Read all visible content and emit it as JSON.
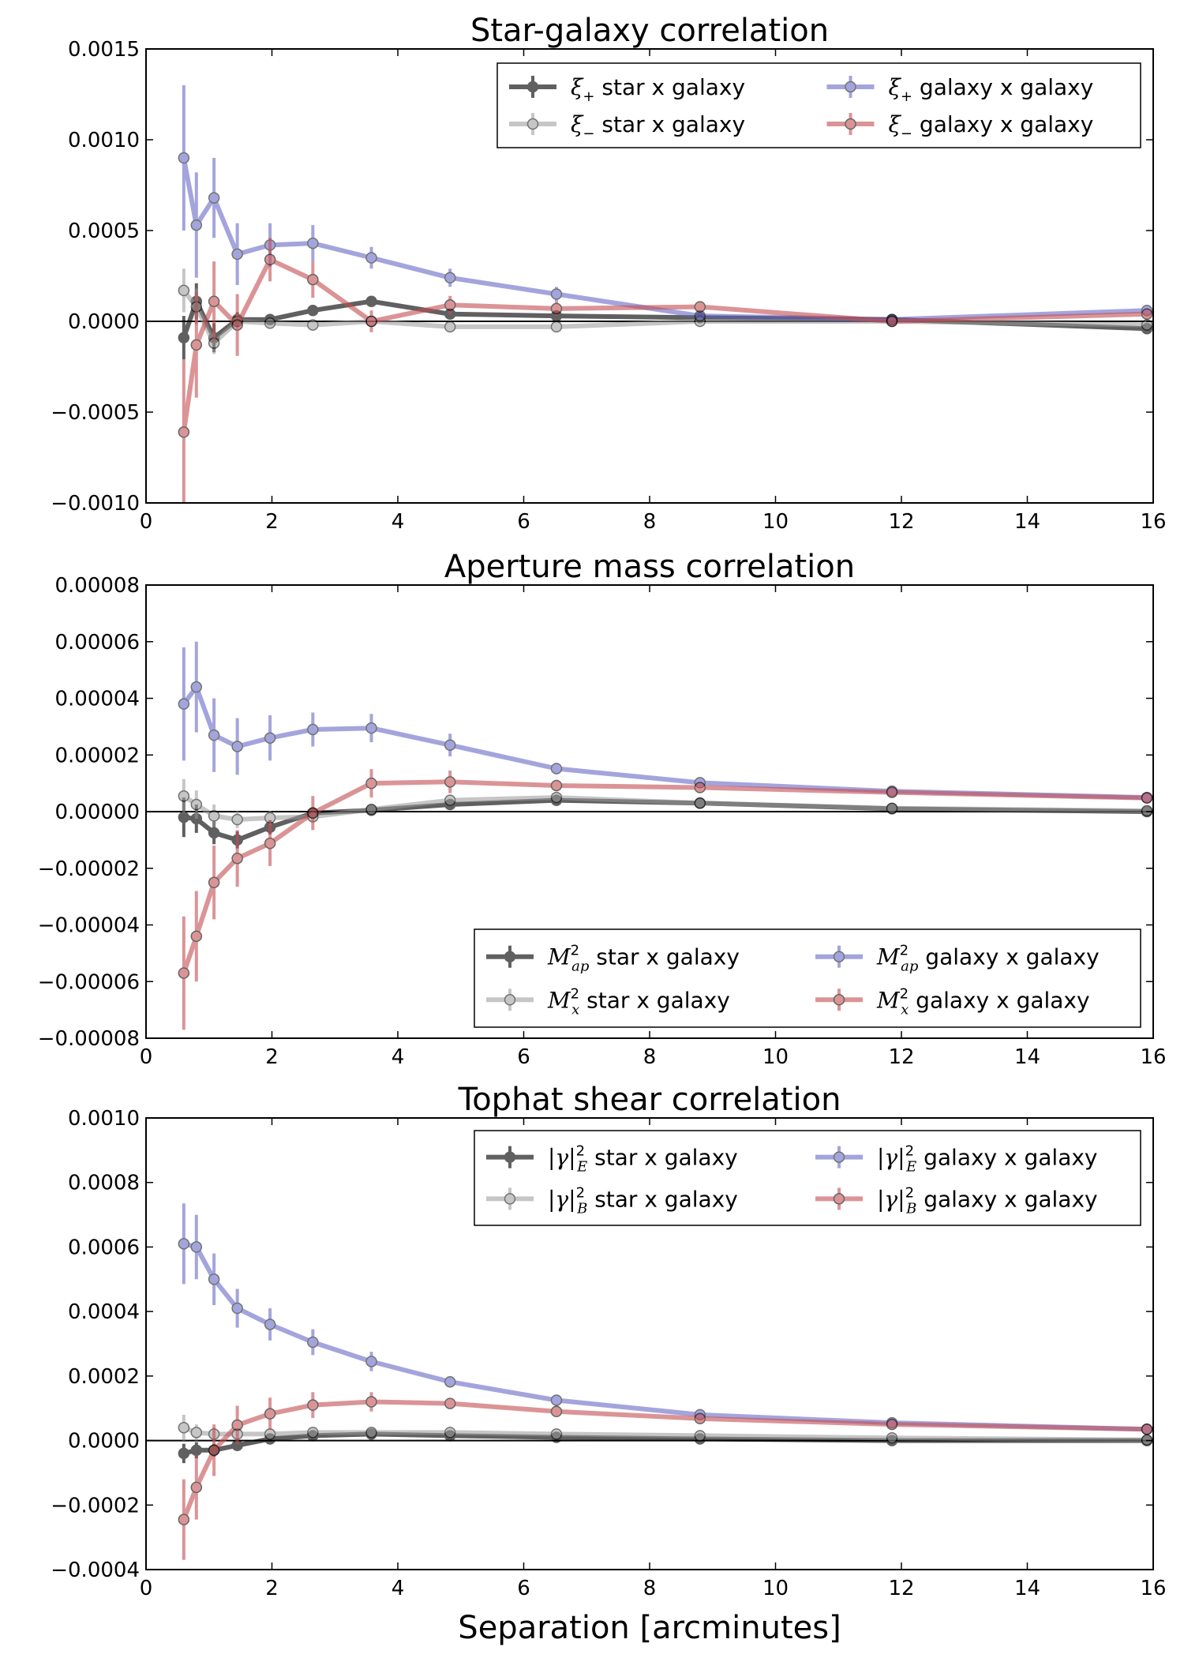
{
  "figure": {
    "xlabel": "Separation [arcminutes]"
  },
  "chart_data": [
    {
      "type": "line",
      "title": "Star-galaxy correlation",
      "xlim": [
        0,
        16
      ],
      "ylim": [
        -0.001,
        0.0015
      ],
      "xticks": [
        0,
        2,
        4,
        6,
        8,
        10,
        12,
        14,
        16
      ],
      "yticks": [
        -0.001,
        -0.0005,
        0.0,
        0.0005,
        0.001,
        0.0015
      ],
      "xtick_labels": [
        "0",
        "2",
        "4",
        "6",
        "8",
        "10",
        "12",
        "14",
        "16"
      ],
      "ytick_labels": [
        "−0.0010",
        "−0.0005",
        "0.0000",
        "0.0005",
        "0.0010",
        "0.0015"
      ],
      "x": [
        0.6,
        0.8,
        1.08,
        1.45,
        1.97,
        2.65,
        3.58,
        4.83,
        6.52,
        8.8,
        11.85,
        15.9
      ],
      "legend": {
        "position": "top-right",
        "columns": 2
      },
      "series": [
        {
          "name": "star x galaxy",
          "symbol": "ξ",
          "sub": "+",
          "color": "#000000",
          "alpha": 0.62,
          "values": [
            -9e-05,
            0.00011,
            -9e-05,
            1e-05,
            1e-05,
            6e-05,
            0.00011,
            4e-05,
            3e-05,
            2e-05,
            1e-05,
            -4e-05
          ],
          "errors": [
            0.00012,
            0.0001,
            8e-05,
            4e-05,
            3e-05,
            2e-05,
            1e-05,
            1e-05,
            1e-05,
            1e-05,
            1e-05,
            1e-05
          ]
        },
        {
          "name": "star x galaxy",
          "symbol": "ξ",
          "sub": "−",
          "color": "#999999",
          "alpha": 0.55,
          "values": [
            0.00017,
            8e-05,
            -0.00012,
            0.0,
            -1e-05,
            -2e-05,
            0.0,
            -3e-05,
            -3e-05,
            0.0,
            0.0,
            -2e-05
          ],
          "errors": [
            0.00012,
            0.0001,
            6e-05,
            4e-05,
            3e-05,
            2e-05,
            1e-05,
            1e-05,
            1e-05,
            1e-05,
            1e-05,
            1e-05
          ]
        },
        {
          "name": "galaxy x galaxy",
          "symbol": "ξ",
          "sub": "+",
          "color": "#5b5bc2",
          "alpha": 0.55,
          "values": [
            0.0009,
            0.00053,
            0.00068,
            0.00037,
            0.00042,
            0.00043,
            0.00035,
            0.00024,
            0.00015,
            3e-05,
            1e-05,
            6e-05
          ],
          "errors": [
            0.0004,
            0.00029,
            0.00022,
            0.00017,
            0.00012,
            0.0001,
            6e-05,
            5e-05,
            4e-05,
            2e-05,
            1e-05,
            2e-05
          ]
        },
        {
          "name": "galaxy x galaxy",
          "symbol": "ξ",
          "sub": "−",
          "color": "#c44e52",
          "alpha": 0.6,
          "values": [
            -0.00061,
            -0.00013,
            0.00011,
            -2e-05,
            0.00034,
            0.00023,
            0.0,
            9e-05,
            7e-05,
            8e-05,
            0.0,
            4e-05
          ],
          "errors": [
            0.0004,
            0.00029,
            0.00022,
            0.00017,
            0.00012,
            0.0001,
            6e-05,
            5e-05,
            4e-05,
            2e-05,
            1e-05,
            2e-05
          ]
        }
      ]
    },
    {
      "type": "line",
      "title": "Aperture mass correlation",
      "xlim": [
        0,
        16
      ],
      "ylim": [
        -8e-05,
        8e-05
      ],
      "xticks": [
        0,
        2,
        4,
        6,
        8,
        10,
        12,
        14,
        16
      ],
      "yticks": [
        -8e-05,
        -6e-05,
        -4e-05,
        -2e-05,
        0.0,
        2e-05,
        4e-05,
        6e-05,
        8e-05
      ],
      "xtick_labels": [
        "0",
        "2",
        "4",
        "6",
        "8",
        "10",
        "12",
        "14",
        "16"
      ],
      "ytick_labels": [
        "−0.00008",
        "−0.00006",
        "−0.00004",
        "−0.00002",
        "0.00000",
        "0.00002",
        "0.00004",
        "0.00006",
        "0.00008"
      ],
      "x": [
        0.6,
        0.8,
        1.08,
        1.45,
        1.97,
        2.65,
        3.58,
        4.83,
        6.52,
        8.8,
        11.85,
        15.9
      ],
      "legend": {
        "position": "lower-right",
        "columns": 2
      },
      "series": [
        {
          "name": "star x galaxy",
          "symbol": "M",
          "sub": "ap",
          "sup": "2",
          "color": "#000000",
          "alpha": 0.62,
          "values": [
            -2e-06,
            -2.5e-06,
            -7.5e-06,
            -1e-05,
            -5.5e-06,
            -5e-07,
            5e-07,
            2.5e-06,
            4e-06,
            3e-06,
            1e-06,
            0.0
          ],
          "errors": [
            7e-06,
            5e-06,
            4e-06,
            3e-06,
            2.5e-06,
            2e-06,
            1.5e-06,
            1e-06,
            1e-06,
            5e-07,
            5e-07,
            5e-07
          ]
        },
        {
          "name": "star x galaxy",
          "symbol": "M",
          "sub": "x",
          "sup": "2",
          "color": "#999999",
          "alpha": 0.55,
          "values": [
            5.5e-06,
            2.5e-06,
            -1.5e-06,
            -2.8e-06,
            -2.2e-06,
            -1.8e-06,
            8e-07,
            4e-06,
            5e-06,
            3e-06,
            1.2e-06,
            3e-07
          ],
          "errors": [
            6e-06,
            5e-06,
            4e-06,
            3e-06,
            2.5e-06,
            2e-06,
            1.5e-06,
            1e-06,
            1e-06,
            5e-07,
            5e-07,
            5e-07
          ]
        },
        {
          "name": "galaxy x galaxy",
          "symbol": "M",
          "sub": "ap",
          "sup": "2",
          "color": "#5b5bc2",
          "alpha": 0.55,
          "values": [
            3.8e-05,
            4.4e-05,
            2.7e-05,
            2.3e-05,
            2.6e-05,
            2.9e-05,
            2.95e-05,
            2.35e-05,
            1.52e-05,
            1.02e-05,
            7.2e-06,
            5e-06
          ],
          "errors": [
            2e-05,
            1.6e-05,
            1.3e-05,
            1e-05,
            8e-06,
            6e-06,
            5e-06,
            4e-06,
            2e-06,
            1.5e-06,
            1e-06,
            1e-06
          ]
        },
        {
          "name": "galaxy x galaxy",
          "symbol": "M",
          "sub": "x",
          "sup": "2",
          "color": "#c44e52",
          "alpha": 0.6,
          "values": [
            -5.7e-05,
            -4.4e-05,
            -2.5e-05,
            -1.65e-05,
            -1.12e-05,
            -5e-07,
            1e-05,
            1.05e-05,
            9.2e-06,
            8.5e-06,
            6.8e-06,
            4.8e-06
          ],
          "errors": [
            2e-05,
            1.6e-05,
            1.3e-05,
            1e-05,
            8e-06,
            6e-06,
            5e-06,
            4e-06,
            2e-06,
            1.5e-06,
            1e-06,
            1e-06
          ]
        }
      ]
    },
    {
      "type": "line",
      "title": "Tophat shear correlation",
      "xlim": [
        0,
        16
      ],
      "ylim": [
        -0.0004,
        0.001
      ],
      "xticks": [
        0,
        2,
        4,
        6,
        8,
        10,
        12,
        14,
        16
      ],
      "yticks": [
        -0.0004,
        -0.0002,
        0.0,
        0.0002,
        0.0004,
        0.0006,
        0.0008,
        0.001
      ],
      "xtick_labels": [
        "0",
        "2",
        "4",
        "6",
        "8",
        "10",
        "12",
        "14",
        "16"
      ],
      "ytick_labels": [
        "−0.0004",
        "−0.0002",
        "0.0000",
        "0.0002",
        "0.0004",
        "0.0006",
        "0.0008",
        "0.0010"
      ],
      "x": [
        0.6,
        0.8,
        1.08,
        1.45,
        1.97,
        2.65,
        3.58,
        4.83,
        6.52,
        8.8,
        11.85,
        15.9
      ],
      "legend": {
        "position": "top-right",
        "columns": 2
      },
      "series": [
        {
          "name": "star x galaxy",
          "symbol": "|γ|",
          "sub": "E",
          "sup": "2",
          "color": "#000000",
          "alpha": 0.62,
          "values": [
            -4e-05,
            -3e-05,
            -3e-05,
            -1.5e-05,
            5e-06,
            1.5e-05,
            2e-05,
            1.5e-05,
            1e-05,
            5e-06,
            0.0,
            0.0
          ],
          "errors": [
            3e-05,
            2.5e-05,
            2e-05,
            1.5e-05,
            1e-05,
            1e-05,
            1e-05,
            5e-06,
            5e-06,
            5e-06,
            5e-06,
            5e-06
          ]
        },
        {
          "name": "star x galaxy",
          "symbol": "|γ|",
          "sub": "B",
          "sup": "2",
          "color": "#999999",
          "alpha": 0.55,
          "values": [
            4e-05,
            2.5e-05,
            2e-05,
            2e-05,
            2e-05,
            2.5e-05,
            2.5e-05,
            2.5e-05,
            2e-05,
            1.5e-05,
            8e-06,
            2e-06
          ],
          "errors": [
            4e-05,
            2.5e-05,
            2e-05,
            1.5e-05,
            1e-05,
            1e-05,
            1e-05,
            5e-06,
            5e-06,
            5e-06,
            5e-06,
            5e-06
          ]
        },
        {
          "name": "galaxy x galaxy",
          "symbol": "|γ|",
          "sub": "E",
          "sup": "2",
          "color": "#5b5bc2",
          "alpha": 0.55,
          "values": [
            0.00061,
            0.0006,
            0.0005,
            0.00041,
            0.00036,
            0.000305,
            0.000245,
            0.000182,
            0.000125,
            8e-05,
            5.5e-05,
            3.5e-05
          ],
          "errors": [
            0.000125,
            0.0001,
            8e-05,
            6e-05,
            5e-05,
            4e-05,
            3e-05,
            1.5e-05,
            1e-05,
            1e-05,
            5e-06,
            5e-06
          ]
        },
        {
          "name": "galaxy x galaxy",
          "symbol": "|γ|",
          "sub": "B",
          "sup": "2",
          "color": "#c44e52",
          "alpha": 0.6,
          "values": [
            -0.000245,
            -0.000145,
            -3e-05,
            4.8e-05,
            8.3e-05,
            0.00011,
            0.00012,
            0.000115,
            9e-05,
            6.8e-05,
            5e-05,
            3.5e-05
          ],
          "errors": [
            0.000125,
            0.0001,
            8e-05,
            6e-05,
            5e-05,
            4e-05,
            3e-05,
            1.5e-05,
            1e-05,
            1e-05,
            5e-06,
            5e-06
          ]
        }
      ]
    }
  ]
}
